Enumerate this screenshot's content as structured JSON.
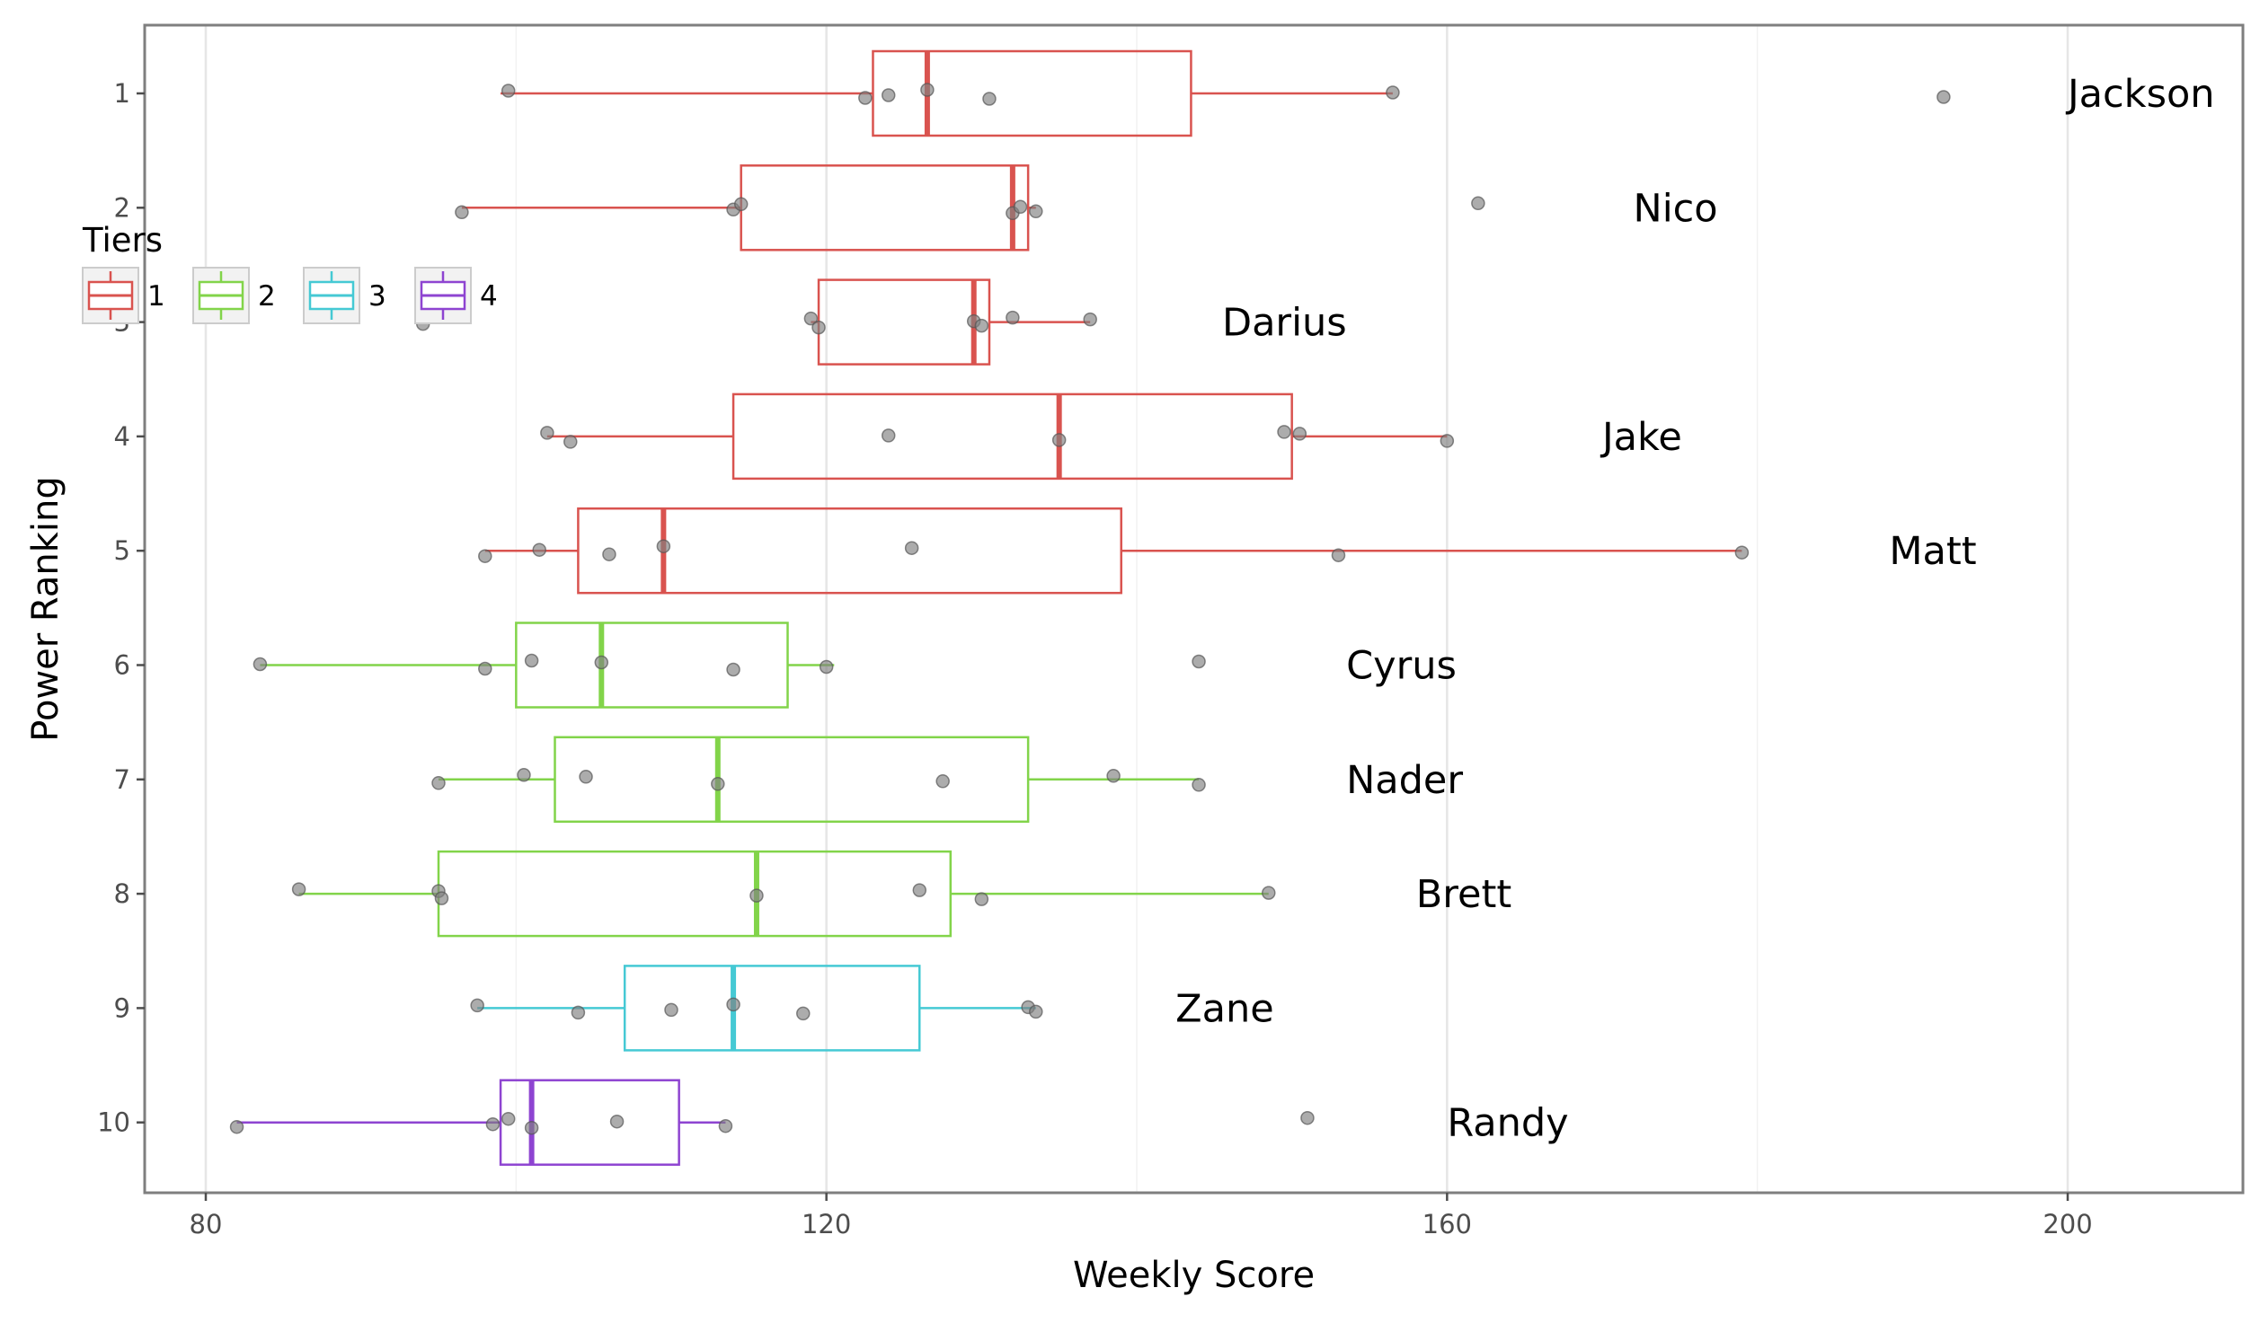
{
  "chart_data": {
    "type": "boxplot",
    "orientation": "horizontal",
    "title": "",
    "xlabel": "Weekly Score",
    "ylabel": "Power Ranking",
    "xlim": [
      76,
      211
    ],
    "x_ticks": [
      80,
      120,
      160,
      200
    ],
    "x_tick_labels": [
      "80",
      "120",
      "160",
      "200"
    ],
    "y_ticks": [
      1,
      2,
      3,
      4,
      5,
      6,
      7,
      8,
      9,
      10
    ],
    "y_tick_labels": [
      "1",
      "2",
      "3",
      "4",
      "5",
      "6",
      "7",
      "8",
      "9",
      "10"
    ],
    "grid": true,
    "legend": {
      "title": "Tiers",
      "placement": "top-left",
      "entries": [
        {
          "label": "1",
          "color": "#d9534f"
        },
        {
          "label": "2",
          "color": "#82d44a"
        },
        {
          "label": "3",
          "color": "#45c9d4"
        },
        {
          "label": "4",
          "color": "#8e44d1"
        }
      ]
    },
    "point_color": "#7f7f7f",
    "teams": [
      {
        "rank": 1,
        "name": "Jackson",
        "tier": "1",
        "whisker_low": 99,
        "q1": 123,
        "median": 126.5,
        "q3": 143.5,
        "whisker_high": 156.5,
        "points": [
          99.5,
          122.5,
          124,
          126.5,
          130.5,
          156.5,
          192
        ],
        "label_x": 200
      },
      {
        "rank": 2,
        "name": "Nico",
        "tier": "1",
        "whisker_low": 96.5,
        "q1": 114.5,
        "median": 132,
        "q3": 133,
        "whisker_high": 133.5,
        "points": [
          96.5,
          114,
          114.5,
          132,
          132.5,
          133.5,
          162
        ],
        "label_x": 172
      },
      {
        "rank": 3,
        "name": "Darius",
        "tier": "1",
        "whisker_low": 119,
        "q1": 119.5,
        "median": 129.5,
        "q3": 130.5,
        "whisker_high": 137,
        "points": [
          94,
          119,
          119.5,
          129.5,
          130,
          132,
          137
        ],
        "label_x": 145.5
      },
      {
        "rank": 4,
        "name": "Jake",
        "tier": "1",
        "whisker_low": 102,
        "q1": 114,
        "median": 135,
        "q3": 150,
        "whisker_high": 160,
        "points": [
          102,
          103.5,
          124,
          135,
          149.5,
          150.5,
          160
        ],
        "label_x": 170
      },
      {
        "rank": 5,
        "name": "Matt",
        "tier": "1",
        "whisker_low": 98,
        "q1": 104,
        "median": 109.5,
        "q3": 139,
        "whisker_high": 179,
        "points": [
          98,
          101.5,
          106,
          109.5,
          125.5,
          153,
          179
        ],
        "label_x": 188.5
      },
      {
        "rank": 6,
        "name": "Cyrus",
        "tier": "2",
        "whisker_low": 83.5,
        "q1": 100,
        "median": 105.5,
        "q3": 117.5,
        "whisker_high": 120.5,
        "points": [
          83.5,
          98,
          101,
          105.5,
          114,
          120,
          144
        ],
        "label_x": 153.5
      },
      {
        "rank": 7,
        "name": "Nader",
        "tier": "2",
        "whisker_low": 95,
        "q1": 102.5,
        "median": 113,
        "q3": 133,
        "whisker_high": 144,
        "points": [
          95,
          100.5,
          104.5,
          113,
          127.5,
          138.5,
          144
        ],
        "label_x": 153.5
      },
      {
        "rank": 8,
        "name": "Brett",
        "tier": "2",
        "whisker_low": 86,
        "q1": 95,
        "median": 115.5,
        "q3": 128,
        "whisker_high": 148.5,
        "points": [
          86,
          95,
          95.2,
          115.5,
          126,
          130,
          148.5
        ],
        "label_x": 158
      },
      {
        "rank": 9,
        "name": "Zane",
        "tier": "3",
        "whisker_low": 97.5,
        "q1": 107,
        "median": 114,
        "q3": 126,
        "whisker_high": 133.5,
        "points": [
          97.5,
          104,
          110,
          114,
          118.5,
          133,
          133.5
        ],
        "label_x": 142.5
      },
      {
        "rank": 10,
        "name": "Randy",
        "tier": "4",
        "whisker_low": 82,
        "q1": 99,
        "median": 101,
        "q3": 110.5,
        "whisker_high": 113.5,
        "points": [
          82,
          98.5,
          99.5,
          101,
          106.5,
          113.5,
          151
        ],
        "label_x": 160
      }
    ]
  }
}
